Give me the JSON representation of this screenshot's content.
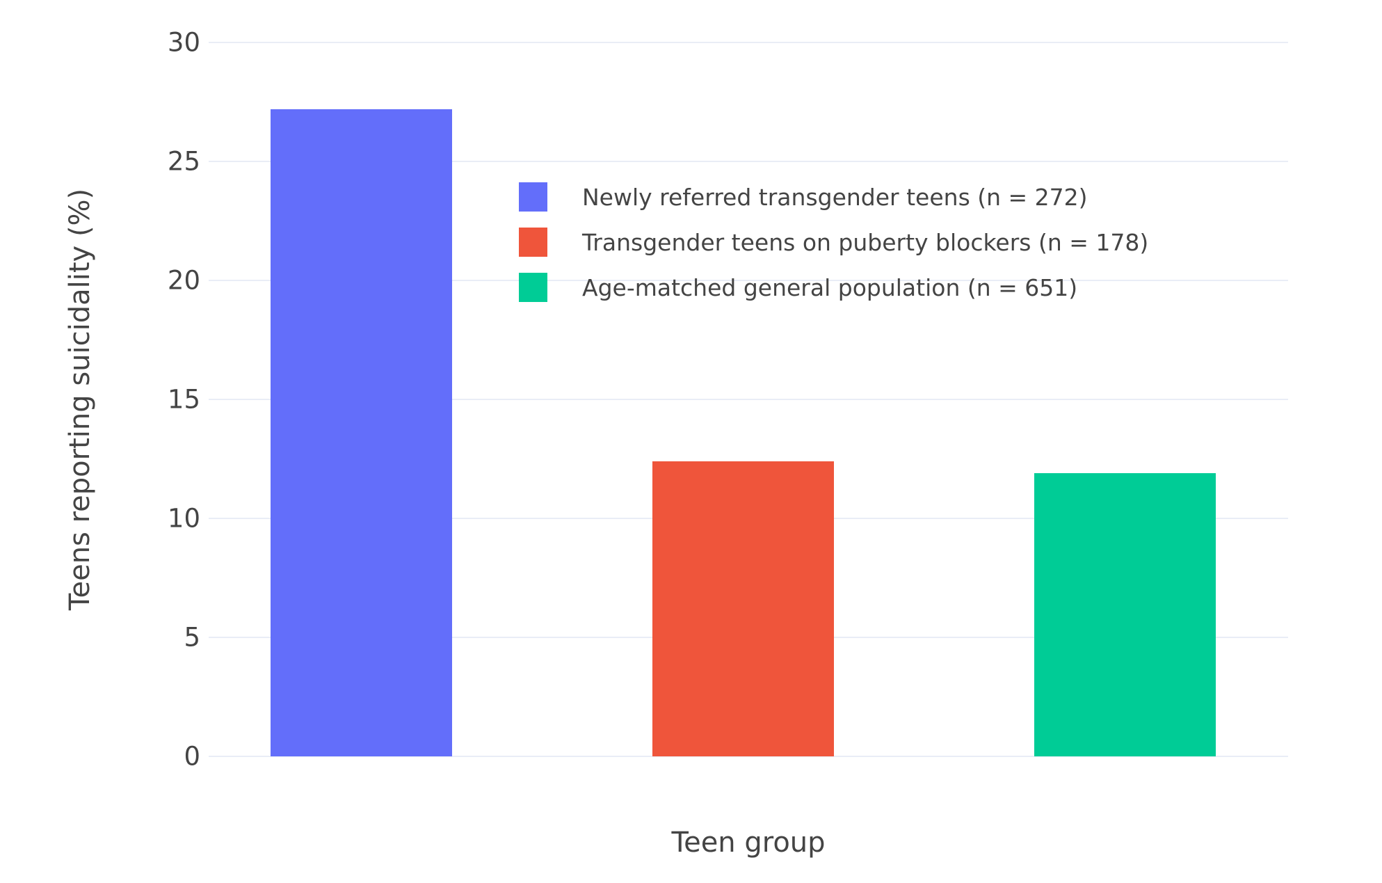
{
  "chart_data": {
    "type": "bar",
    "title": "",
    "xlabel": "Teen group",
    "ylabel": "Teens reporting suicidality (%)",
    "ylim": [
      0,
      30
    ],
    "yticks": [
      0,
      5,
      10,
      15,
      20,
      25,
      30
    ],
    "grid": true,
    "legend_position": "inside-top-right",
    "categories": [
      "Newly referred transgender teens (n = 272)",
      "Transgender teens on puberty blockers (n = 178)",
      "Age-matched general population (n = 651)"
    ],
    "series": [
      {
        "name": "Newly referred transgender teens (n = 272)",
        "value": 27.2,
        "color": "#636EFA"
      },
      {
        "name": "Transgender teens on puberty blockers (n = 178)",
        "value": 12.4,
        "color": "#EF553B"
      },
      {
        "name": "Age-matched general population (n = 651)",
        "value": 11.9,
        "color": "#00CC96"
      }
    ]
  },
  "colors": {
    "background": "#FFFFFF",
    "text": "#444444",
    "grid": "#E9EDF6"
  }
}
